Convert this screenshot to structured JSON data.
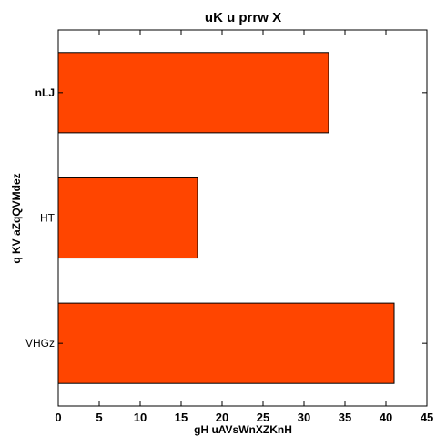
{
  "chart_data": {
    "type": "bar",
    "orientation": "horizontal",
    "title": "uK u prrw X",
    "xlabel": "gH uAVsWnXZKnH",
    "ylabel": "q KV aZqQVMdez",
    "categories": [
      "nLJ",
      "HT",
      "VHGz"
    ],
    "values": [
      33,
      17,
      41
    ],
    "xlim": [
      0,
      45
    ],
    "xticks": [
      0,
      5,
      10,
      15,
      20,
      25,
      30,
      35,
      40,
      45
    ],
    "bar_color": "#ff4500",
    "grid": false,
    "legend": "none"
  }
}
